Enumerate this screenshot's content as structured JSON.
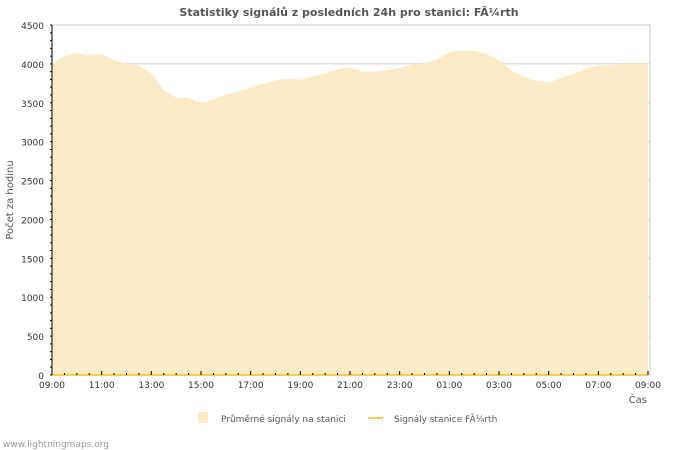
{
  "chart_data": {
    "type": "area",
    "title": "Statistiky signálů z posledních 24h pro stanici: FÃ¼rth",
    "xlabel": "Čas",
    "ylabel": "Počet za hodinu",
    "ylim": [
      0,
      4500
    ],
    "yticks": [
      "0",
      "500",
      "1000",
      "1500",
      "2000",
      "2500",
      "3000",
      "3500",
      "4000",
      "4500"
    ],
    "xticks": [
      "09:00",
      "11:00",
      "13:00",
      "15:00",
      "17:00",
      "19:00",
      "21:00",
      "23:00",
      "01:00",
      "03:00",
      "05:00",
      "07:00",
      "09:00"
    ],
    "x_hours_from_start": [
      0,
      0.5,
      1,
      1.5,
      2,
      2.5,
      3,
      3.5,
      4,
      4.5,
      5,
      5.5,
      6,
      6.5,
      7,
      7.5,
      8,
      8.5,
      9,
      9.5,
      10,
      10.5,
      11,
      11.5,
      12,
      12.5,
      13,
      13.5,
      14,
      14.5,
      15,
      15.5,
      16,
      16.5,
      17,
      17.5,
      18,
      18.5,
      19,
      19.5,
      20,
      20.5,
      21,
      21.5,
      22,
      22.5,
      23,
      23.5,
      24
    ],
    "series": [
      {
        "name": "Průměrné signály na stanici",
        "color": "#fdebc8",
        "values": [
          4000,
          4100,
          4140,
          4110,
          4130,
          4050,
          4000,
          3980,
          3880,
          3660,
          3570,
          3560,
          3500,
          3540,
          3610,
          3640,
          3700,
          3740,
          3790,
          3810,
          3800,
          3840,
          3880,
          3930,
          3960,
          3900,
          3900,
          3920,
          3950,
          3990,
          4000,
          4060,
          4150,
          4170,
          4170,
          4130,
          4050,
          3910,
          3840,
          3780,
          3760,
          3820,
          3870,
          3940,
          3980,
          3980,
          4000,
          4000,
          4000
        ]
      },
      {
        "name": "Signály stanice FÃ¼rth",
        "color": "#f7cd4d",
        "values": [
          0,
          0,
          0,
          0,
          0,
          0,
          0,
          0,
          0,
          0,
          0,
          0,
          0,
          0,
          0,
          0,
          0,
          0,
          0,
          0,
          0,
          0,
          0,
          0,
          0,
          0,
          0,
          0,
          0,
          0,
          0,
          0,
          0,
          0,
          0,
          0,
          0,
          0,
          0,
          0,
          0,
          0,
          0,
          0,
          0,
          0,
          0,
          0,
          0
        ]
      }
    ],
    "grid": true,
    "legend": "bottom-center"
  },
  "footer": "www.lightningmaps.org"
}
